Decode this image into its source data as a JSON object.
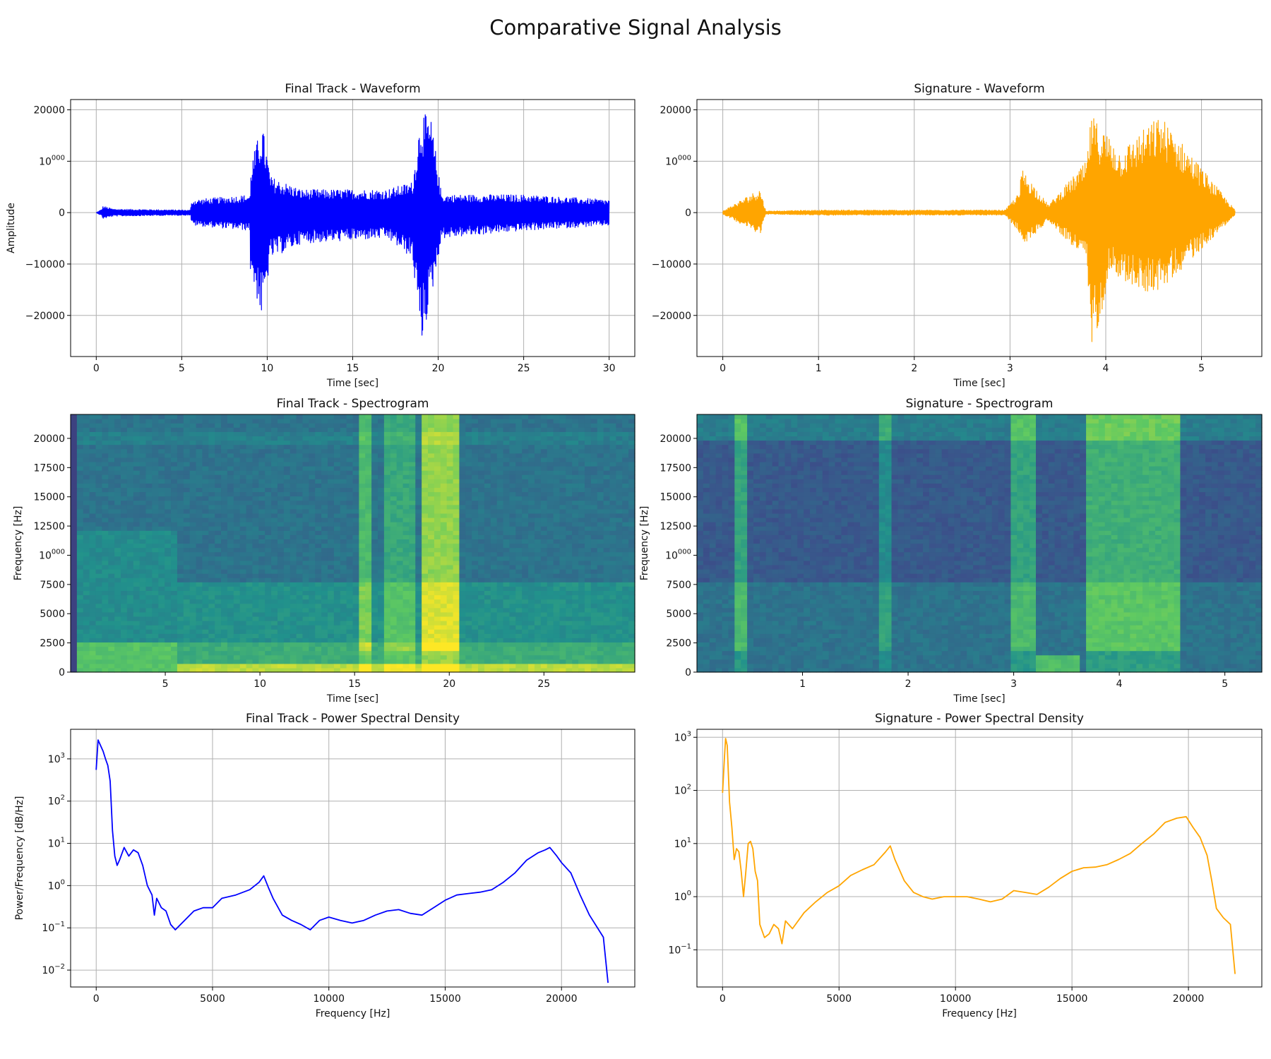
{
  "figure_title": "Comparative Signal Analysis",
  "colors": {
    "final": "#0000ff",
    "signature": "#ffa500",
    "grid": "#b0b0b0"
  },
  "chart_data": [
    {
      "id": "ft-wave",
      "type": "line",
      "title": "Final Track - Waveform",
      "xlabel": "Time [sec]",
      "ylabel": "Amplitude",
      "xlim": [
        -1.5,
        31.5
      ],
      "ylim": [
        -28000,
        22000
      ],
      "xticks": [
        0,
        5,
        10,
        15,
        20,
        25,
        30
      ],
      "yticks": [
        -20000,
        -10000,
        0,
        10000,
        20000
      ],
      "ytick_labels": [
        "−20000",
        "−10000",
        "0",
        "10000",
        "20000"
      ],
      "grid": true,
      "series": [
        {
          "color": "#0000ff",
          "envelope": [
            [
              0,
              0,
              0
            ],
            [
              0.3,
              -600,
              600
            ],
            [
              0.4,
              -1200,
              1300
            ],
            [
              1,
              -700,
              700
            ],
            [
              5.5,
              -500,
              500
            ],
            [
              5.6,
              -2500,
              2500
            ],
            [
              9,
              -3500,
              3500
            ],
            [
              8.8,
              -8500,
              6500
            ],
            [
              9.7,
              -21000,
              17500
            ],
            [
              10.2,
              -9000,
              7000
            ],
            [
              12,
              -6000,
              4500
            ],
            [
              17,
              -5000,
              4500
            ],
            [
              18.5,
              -9000,
              6000
            ],
            [
              19,
              -26000,
              19800
            ],
            [
              19.6,
              -16500,
              18000
            ],
            [
              20.2,
              -5000,
              3500
            ],
            [
              25,
              -3500,
              3500
            ],
            [
              30,
              -2500,
              2500
            ]
          ]
        }
      ]
    },
    {
      "id": "sig-wave",
      "type": "line",
      "title": "Signature - Waveform",
      "xlabel": "Time [sec]",
      "ylabel": "",
      "xlim": [
        -0.27,
        5.63
      ],
      "ylim": [
        -28000,
        22000
      ],
      "xticks": [
        0,
        1,
        2,
        3,
        4,
        5
      ],
      "yticks": [
        -20000,
        -10000,
        0,
        10000,
        20000
      ],
      "ytick_labels": [
        "−20000",
        "−10000",
        "0",
        "10000",
        "20000"
      ],
      "grid": true,
      "series": [
        {
          "color": "#ffa500",
          "envelope": [
            [
              0,
              -300,
              300
            ],
            [
              0.39,
              -4200,
              4700
            ],
            [
              0.45,
              -300,
              300
            ],
            [
              1,
              -500,
              500
            ],
            [
              2.95,
              -500,
              500
            ],
            [
              3.1,
              -4000,
              4000
            ],
            [
              3.12,
              -6800,
              8700
            ],
            [
              3.4,
              -1500,
              1500
            ],
            [
              3.8,
              -9500,
              10000
            ],
            [
              3.85,
              -26500,
              19200
            ],
            [
              3.95,
              -20000,
              16500
            ],
            [
              4.05,
              -10500,
              15000
            ],
            [
              4.15,
              -13000,
              12000
            ],
            [
              4.38,
              -15500,
              16000
            ],
            [
              4.57,
              -15200,
              19000
            ],
            [
              5.35,
              -500,
              500
            ]
          ]
        }
      ]
    },
    {
      "id": "ft-spec",
      "type": "heatmap",
      "title": "Final Track - Spectrogram",
      "xlabel": "Time [sec]",
      "ylabel": "Frequency [Hz]",
      "xlim": [
        0,
        29.8
      ],
      "ylim": [
        0,
        22050
      ],
      "xticks": [
        5,
        10,
        15,
        20,
        25
      ],
      "yticks": [
        0,
        2500,
        5000,
        7500,
        10000,
        12500,
        15000,
        17500,
        20000
      ],
      "colormap": "viridis",
      "grid": false
    },
    {
      "id": "sig-spec",
      "type": "heatmap",
      "title": "Signature - Spectrogram",
      "xlabel": "Time [sec]",
      "ylabel": "Frequency [Hz]",
      "xlim": [
        0,
        5.35
      ],
      "ylim": [
        0,
        22050
      ],
      "xticks": [
        1,
        2,
        3,
        4,
        5
      ],
      "yticks": [
        0,
        2500,
        5000,
        7500,
        10000,
        12500,
        15000,
        17500,
        20000
      ],
      "colormap": "viridis",
      "grid": false
    },
    {
      "id": "ft-psd",
      "type": "line",
      "title": "Final Track - Power Spectral Density",
      "xlabel": "Frequency [Hz]",
      "ylabel": "Power/Frequency [dB/Hz]",
      "xlim": [
        -1100,
        23150
      ],
      "ylim_log10": [
        -2.4,
        3.7
      ],
      "log_y": true,
      "xticks": [
        0,
        5000,
        10000,
        15000,
        20000
      ],
      "yticks_log10": [
        -2,
        -1,
        0,
        1,
        2,
        3
      ],
      "ytick_labels": [
        "10−2",
        "10−1",
        "100",
        "101",
        "102",
        "103"
      ],
      "grid": true,
      "series": [
        {
          "color": "#0000ff",
          "points": [
            [
              0,
              550
            ],
            [
              80,
              2800
            ],
            [
              200,
              2000
            ],
            [
              300,
              1500
            ],
            [
              400,
              1000
            ],
            [
              500,
              700
            ],
            [
              600,
              300
            ],
            [
              700,
              20
            ],
            [
              800,
              5
            ],
            [
              900,
              3
            ],
            [
              1000,
              4
            ],
            [
              1200,
              8
            ],
            [
              1400,
              5
            ],
            [
              1600,
              7
            ],
            [
              1800,
              6
            ],
            [
              2000,
              3
            ],
            [
              2200,
              1
            ],
            [
              2400,
              0.6
            ],
            [
              2500,
              0.2
            ],
            [
              2600,
              0.5
            ],
            [
              2800,
              0.3
            ],
            [
              3000,
              0.25
            ],
            [
              3200,
              0.12
            ],
            [
              3400,
              0.09
            ],
            [
              3800,
              0.15
            ],
            [
              4200,
              0.25
            ],
            [
              4600,
              0.3
            ],
            [
              5000,
              0.3
            ],
            [
              5400,
              0.5
            ],
            [
              6000,
              0.6
            ],
            [
              6600,
              0.8
            ],
            [
              7000,
              1.2
            ],
            [
              7200,
              1.7
            ],
            [
              7400,
              0.9
            ],
            [
              7600,
              0.5
            ],
            [
              8000,
              0.2
            ],
            [
              8400,
              0.15
            ],
            [
              8800,
              0.12
            ],
            [
              9200,
              0.09
            ],
            [
              9600,
              0.15
            ],
            [
              10000,
              0.18
            ],
            [
              10500,
              0.15
            ],
            [
              11000,
              0.13
            ],
            [
              11500,
              0.15
            ],
            [
              12000,
              0.2
            ],
            [
              12500,
              0.25
            ],
            [
              13000,
              0.27
            ],
            [
              13500,
              0.22
            ],
            [
              14000,
              0.2
            ],
            [
              14500,
              0.3
            ],
            [
              15000,
              0.45
            ],
            [
              15500,
              0.6
            ],
            [
              16000,
              0.65
            ],
            [
              16500,
              0.7
            ],
            [
              17000,
              0.8
            ],
            [
              17500,
              1.2
            ],
            [
              18000,
              2
            ],
            [
              18500,
              4
            ],
            [
              19000,
              6
            ],
            [
              19300,
              7
            ],
            [
              19500,
              8
            ],
            [
              19800,
              5
            ],
            [
              20000,
              3.5
            ],
            [
              20400,
              2
            ],
            [
              20800,
              0.6
            ],
            [
              21200,
              0.2
            ],
            [
              21600,
              0.09
            ],
            [
              21800,
              0.06
            ],
            [
              22000,
              0.005
            ]
          ]
        }
      ]
    },
    {
      "id": "sig-psd",
      "type": "line",
      "title": "Signature - Power Spectral Density",
      "xlabel": "Frequency [Hz]",
      "ylabel": "",
      "xlim": [
        -1100,
        23150
      ],
      "ylim_log10": [
        -1.7,
        3.15
      ],
      "log_y": true,
      "xticks": [
        0,
        5000,
        10000,
        15000,
        20000
      ],
      "yticks_log10": [
        -1,
        0,
        1,
        2,
        3
      ],
      "ytick_labels": [
        "10−1",
        "100",
        "101",
        "102",
        "103"
      ],
      "grid": true,
      "series": [
        {
          "color": "#ffa500",
          "points": [
            [
              0,
              90
            ],
            [
              80,
              400
            ],
            [
              130,
              950
            ],
            [
              200,
              700
            ],
            [
              300,
              60
            ],
            [
              400,
              20
            ],
            [
              500,
              5
            ],
            [
              600,
              8
            ],
            [
              700,
              7
            ],
            [
              800,
              3
            ],
            [
              900,
              1
            ],
            [
              1000,
              3
            ],
            [
              1100,
              10
            ],
            [
              1200,
              11
            ],
            [
              1300,
              8
            ],
            [
              1400,
              3
            ],
            [
              1500,
              2
            ],
            [
              1600,
              0.3
            ],
            [
              1800,
              0.17
            ],
            [
              2000,
              0.2
            ],
            [
              2200,
              0.3
            ],
            [
              2400,
              0.25
            ],
            [
              2550,
              0.13
            ],
            [
              2700,
              0.35
            ],
            [
              3000,
              0.25
            ],
            [
              3500,
              0.5
            ],
            [
              4000,
              0.8
            ],
            [
              4500,
              1.2
            ],
            [
              5000,
              1.6
            ],
            [
              5500,
              2.5
            ],
            [
              6000,
              3.2
            ],
            [
              6500,
              4
            ],
            [
              7000,
              7
            ],
            [
              7200,
              9
            ],
            [
              7400,
              5
            ],
            [
              7800,
              2
            ],
            [
              8200,
              1.2
            ],
            [
              8600,
              1
            ],
            [
              9000,
              0.9
            ],
            [
              9500,
              1
            ],
            [
              10000,
              1
            ],
            [
              10500,
              1
            ],
            [
              11000,
              0.9
            ],
            [
              11500,
              0.8
            ],
            [
              12000,
              0.9
            ],
            [
              12500,
              1.3
            ],
            [
              13000,
              1.2
            ],
            [
              13500,
              1.1
            ],
            [
              14000,
              1.5
            ],
            [
              14500,
              2.2
            ],
            [
              15000,
              3
            ],
            [
              15500,
              3.5
            ],
            [
              16000,
              3.6
            ],
            [
              16500,
              4
            ],
            [
              17000,
              5
            ],
            [
              17500,
              6.5
            ],
            [
              18000,
              10
            ],
            [
              18500,
              15
            ],
            [
              19000,
              25
            ],
            [
              19500,
              30
            ],
            [
              19900,
              32
            ],
            [
              20200,
              20
            ],
            [
              20500,
              13
            ],
            [
              20800,
              6
            ],
            [
              21000,
              2
            ],
            [
              21200,
              0.6
            ],
            [
              21500,
              0.4
            ],
            [
              21800,
              0.3
            ],
            [
              22000,
              0.035
            ]
          ]
        }
      ]
    }
  ]
}
